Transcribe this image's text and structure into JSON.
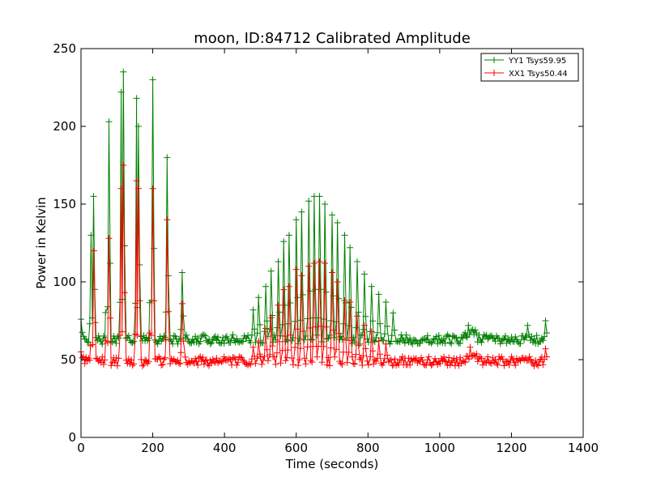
{
  "chart_data": {
    "type": "line",
    "title": "moon, ID:84712 Calibrated Amplitude",
    "xlabel": "Time (seconds)",
    "ylabel": "Power in Kelvin",
    "xlim": [
      0,
      1400
    ],
    "ylim": [
      0,
      250
    ],
    "xticks": [
      0,
      200,
      400,
      600,
      800,
      1000,
      1200,
      1400
    ],
    "yticks": [
      0,
      50,
      100,
      150,
      200,
      250
    ],
    "grid": false,
    "legend_position": "top-right",
    "marker": "plus",
    "series": [
      {
        "name": "YY1 Tsys59.95",
        "color": "#008000",
        "baseline": 63,
        "end_time": 1300,
        "peaks": [
          {
            "t": 0,
            "v": 76
          },
          {
            "t": 28,
            "v": 130
          },
          {
            "t": 35,
            "v": 155
          },
          {
            "t": 72,
            "v": 178
          },
          {
            "t": 78,
            "v": 203
          },
          {
            "t": 112,
            "v": 222
          },
          {
            "t": 118,
            "v": 235
          },
          {
            "t": 155,
            "v": 218
          },
          {
            "t": 160,
            "v": 200
          },
          {
            "t": 195,
            "v": 220
          },
          {
            "t": 200,
            "v": 230
          },
          {
            "t": 240,
            "v": 180
          },
          {
            "t": 282,
            "v": 106
          },
          {
            "t": 480,
            "v": 82
          },
          {
            "t": 495,
            "v": 90
          },
          {
            "t": 515,
            "v": 97
          },
          {
            "t": 530,
            "v": 107
          },
          {
            "t": 550,
            "v": 113
          },
          {
            "t": 565,
            "v": 126
          },
          {
            "t": 580,
            "v": 130
          },
          {
            "t": 600,
            "v": 140
          },
          {
            "t": 615,
            "v": 145
          },
          {
            "t": 635,
            "v": 152
          },
          {
            "t": 650,
            "v": 155
          },
          {
            "t": 665,
            "v": 155
          },
          {
            "t": 680,
            "v": 150
          },
          {
            "t": 700,
            "v": 143
          },
          {
            "t": 715,
            "v": 138
          },
          {
            "t": 735,
            "v": 130
          },
          {
            "t": 750,
            "v": 122
          },
          {
            "t": 770,
            "v": 113
          },
          {
            "t": 790,
            "v": 105
          },
          {
            "t": 810,
            "v": 97
          },
          {
            "t": 830,
            "v": 92
          },
          {
            "t": 850,
            "v": 87
          },
          {
            "t": 870,
            "v": 80
          },
          {
            "t": 1080,
            "v": 72
          },
          {
            "t": 1245,
            "v": 72
          },
          {
            "t": 1295,
            "v": 75
          }
        ]
      },
      {
        "name": "XX1 Tsys50.44",
        "color": "#ff0000",
        "baseline": 49,
        "end_time": 1300,
        "peaks": [
          {
            "t": 0,
            "v": 55
          },
          {
            "t": 30,
            "v": 115
          },
          {
            "t": 36,
            "v": 120
          },
          {
            "t": 72,
            "v": 138
          },
          {
            "t": 78,
            "v": 128
          },
          {
            "t": 112,
            "v": 160
          },
          {
            "t": 118,
            "v": 175
          },
          {
            "t": 155,
            "v": 165
          },
          {
            "t": 160,
            "v": 160
          },
          {
            "t": 195,
            "v": 170
          },
          {
            "t": 200,
            "v": 160
          },
          {
            "t": 240,
            "v": 140
          },
          {
            "t": 282,
            "v": 86
          },
          {
            "t": 480,
            "v": 58
          },
          {
            "t": 495,
            "v": 62
          },
          {
            "t": 515,
            "v": 70
          },
          {
            "t": 530,
            "v": 77
          },
          {
            "t": 550,
            "v": 85
          },
          {
            "t": 565,
            "v": 95
          },
          {
            "t": 580,
            "v": 97
          },
          {
            "t": 600,
            "v": 108
          },
          {
            "t": 615,
            "v": 104
          },
          {
            "t": 635,
            "v": 110
          },
          {
            "t": 650,
            "v": 112
          },
          {
            "t": 665,
            "v": 113
          },
          {
            "t": 680,
            "v": 112
          },
          {
            "t": 700,
            "v": 106
          },
          {
            "t": 715,
            "v": 100
          },
          {
            "t": 735,
            "v": 88
          },
          {
            "t": 750,
            "v": 87
          },
          {
            "t": 770,
            "v": 78
          },
          {
            "t": 790,
            "v": 72
          },
          {
            "t": 810,
            "v": 68
          },
          {
            "t": 830,
            "v": 62
          },
          {
            "t": 850,
            "v": 60
          },
          {
            "t": 1085,
            "v": 58
          },
          {
            "t": 1250,
            "v": 52
          },
          {
            "t": 1295,
            "v": 57
          }
        ]
      }
    ]
  }
}
